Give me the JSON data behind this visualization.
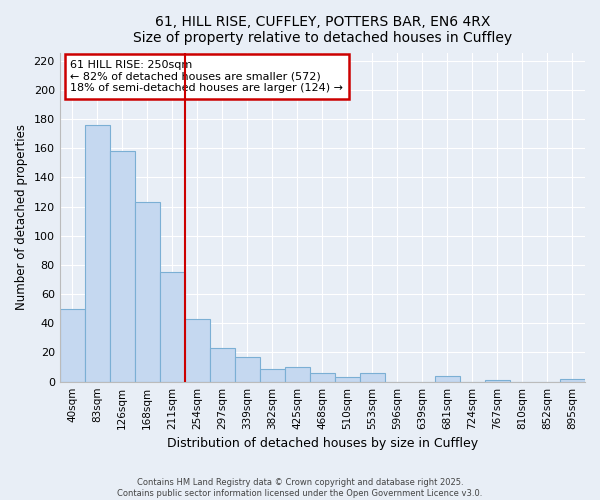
{
  "title1": "61, HILL RISE, CUFFLEY, POTTERS BAR, EN6 4RX",
  "title2": "Size of property relative to detached houses in Cuffley",
  "xlabel": "Distribution of detached houses by size in Cuffley",
  "ylabel": "Number of detached properties",
  "bar_labels": [
    "40sqm",
    "83sqm",
    "126sqm",
    "168sqm",
    "211sqm",
    "254sqm",
    "297sqm",
    "339sqm",
    "382sqm",
    "425sqm",
    "468sqm",
    "510sqm",
    "553sqm",
    "596sqm",
    "639sqm",
    "681sqm",
    "724sqm",
    "767sqm",
    "810sqm",
    "852sqm",
    "895sqm"
  ],
  "bar_values": [
    50,
    176,
    158,
    123,
    75,
    43,
    23,
    17,
    9,
    10,
    6,
    3,
    6,
    0,
    0,
    4,
    0,
    1,
    0,
    0,
    2
  ],
  "bar_color": "#c5d8f0",
  "bar_edgecolor": "#7bafd4",
  "property_line_index": 5,
  "annotation_line1": "61 HILL RISE: 250sqm",
  "annotation_line2": "← 82% of detached houses are smaller (572)",
  "annotation_line3": "18% of semi-detached houses are larger (124) →",
  "annotation_box_color": "#ffffff",
  "annotation_box_edgecolor": "#cc0000",
  "line_color": "#cc0000",
  "ylim": [
    0,
    225
  ],
  "yticks": [
    0,
    20,
    40,
    60,
    80,
    100,
    120,
    140,
    160,
    180,
    200,
    220
  ],
  "background_color": "#e8eef6",
  "grid_color": "#ffffff",
  "footer1": "Contains HM Land Registry data © Crown copyright and database right 2025.",
  "footer2": "Contains public sector information licensed under the Open Government Licence v3.0."
}
